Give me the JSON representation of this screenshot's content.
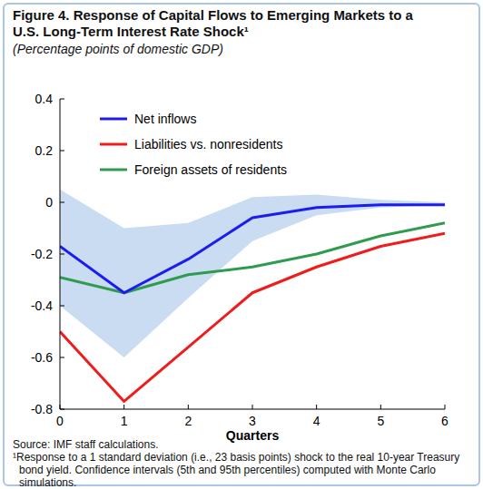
{
  "chart_data": {
    "type": "line",
    "title": "Figure 4. Response  of Capital Flows to Emerging Markets to a U.S. Long-Term Interest Rate Shock¹",
    "subtitle": "(Percentage points of domestic GDP)",
    "x_label": "Quarters",
    "annotations": [
      "Source: IMF staff calculations.",
      "¹Response to a 1 standard deviation (i.e., 23 basis points) shock to the real 10-year Treasury bond  yield. Confidence intervals (5th and 95th percentiles) computed with Monte Carlo simulations."
    ],
    "x": [
      0,
      1,
      2,
      3,
      4,
      5,
      6
    ],
    "series": [
      {
        "name": "Net inflows",
        "color": "#1c1cf0",
        "values": [
          -0.17,
          -0.35,
          -0.22,
          -0.06,
          -0.02,
          -0.01,
          -0.01
        ],
        "lower": [
          -0.4,
          -0.6,
          -0.37,
          -0.15,
          -0.05,
          -0.02,
          -0.01
        ],
        "upper": [
          0.05,
          -0.1,
          -0.08,
          0.02,
          0.03,
          0.01,
          0.0
        ]
      },
      {
        "name": "Liabilities vs. nonresidents",
        "color": "#ee1c1c",
        "values": [
          -0.5,
          -0.77,
          -0.56,
          -0.35,
          -0.25,
          -0.17,
          -0.12
        ]
      },
      {
        "name": "Foreign assets of residents",
        "color": "#2e9b4e",
        "values": [
          -0.29,
          -0.35,
          -0.28,
          -0.25,
          -0.2,
          -0.13,
          -0.08
        ]
      }
    ],
    "xlim": [
      0,
      6
    ],
    "xticks": [
      0,
      1,
      2,
      3,
      4,
      5,
      6
    ],
    "ylim": [
      -0.8,
      0.4
    ],
    "yticks": [
      0.4,
      0.2,
      0,
      -0.2,
      -0.4,
      -0.6,
      -0.8
    ],
    "grid": false,
    "legend": "top-left"
  }
}
